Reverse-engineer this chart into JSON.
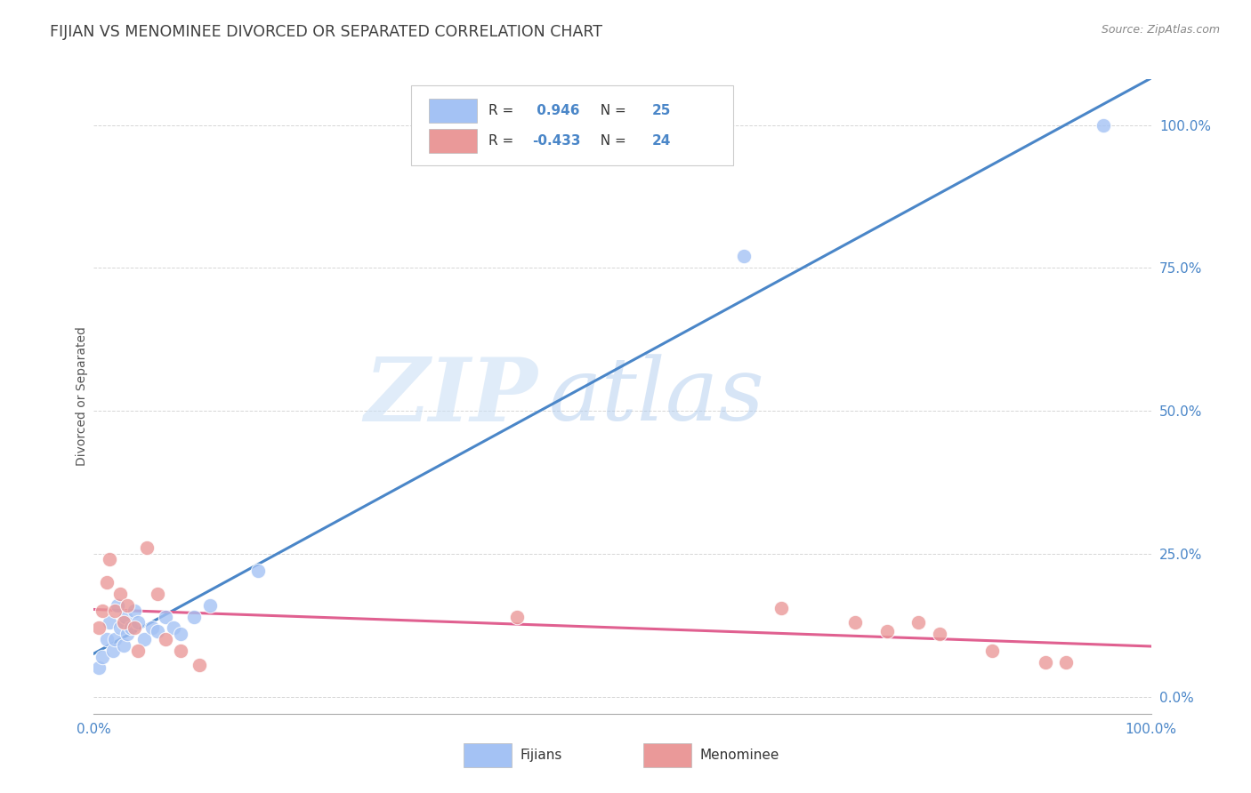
{
  "title": "FIJIAN VS MENOMINEE DIVORCED OR SEPARATED CORRELATION CHART",
  "source_text": "Source: ZipAtlas.com",
  "ylabel": "Divorced or Separated",
  "xlim": [
    0.0,
    1.0
  ],
  "ylim": [
    -0.03,
    1.08
  ],
  "x_tick_positions": [
    0.0,
    1.0
  ],
  "x_tick_labels": [
    "0.0%",
    "100.0%"
  ],
  "y_tick_positions": [
    0.0,
    0.25,
    0.5,
    0.75,
    1.0
  ],
  "y_tick_labels": [
    "0.0%",
    "25.0%",
    "50.0%",
    "75.0%",
    "100.0%"
  ],
  "fijian_color": "#a4c2f4",
  "menominee_color": "#ea9999",
  "fijian_line_color": "#4a86c8",
  "menominee_line_color": "#e06090",
  "legend_fijian_label": "Fijians",
  "legend_menominee_label": "Menominee",
  "R_fijian": 0.946,
  "N_fijian": 25,
  "R_menominee": -0.433,
  "N_menominee": 24,
  "fijian_x": [
    0.005,
    0.008,
    0.012,
    0.015,
    0.018,
    0.02,
    0.022,
    0.025,
    0.028,
    0.03,
    0.032,
    0.035,
    0.038,
    0.042,
    0.048,
    0.055,
    0.06,
    0.068,
    0.075,
    0.082,
    0.095,
    0.11,
    0.155,
    0.615,
    0.955
  ],
  "fijian_y": [
    0.05,
    0.07,
    0.1,
    0.13,
    0.08,
    0.1,
    0.16,
    0.12,
    0.09,
    0.14,
    0.11,
    0.12,
    0.15,
    0.13,
    0.1,
    0.12,
    0.115,
    0.14,
    0.12,
    0.11,
    0.14,
    0.16,
    0.22,
    0.77,
    1.0
  ],
  "menominee_x": [
    0.005,
    0.008,
    0.012,
    0.015,
    0.02,
    0.025,
    0.028,
    0.032,
    0.038,
    0.042,
    0.05,
    0.06,
    0.068,
    0.082,
    0.1,
    0.4,
    0.65,
    0.72,
    0.75,
    0.78,
    0.8,
    0.85,
    0.9,
    0.92
  ],
  "menominee_y": [
    0.12,
    0.15,
    0.2,
    0.24,
    0.15,
    0.18,
    0.13,
    0.16,
    0.12,
    0.08,
    0.26,
    0.18,
    0.1,
    0.08,
    0.055,
    0.14,
    0.155,
    0.13,
    0.115,
    0.13,
    0.11,
    0.08,
    0.06,
    0.06
  ],
  "watermark_zip_color": "#cde0f5",
  "watermark_atlas_color": "#b8d4f0",
  "background_color": "#ffffff",
  "grid_color": "#cccccc",
  "tick_color": "#4a86c8",
  "title_color": "#404040",
  "ylabel_color": "#555555",
  "source_color": "#888888"
}
